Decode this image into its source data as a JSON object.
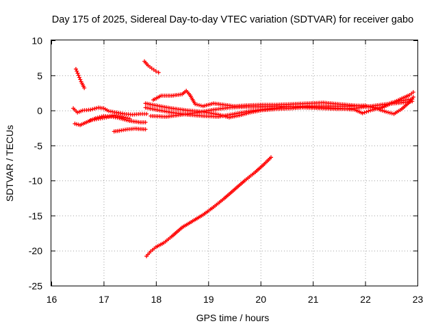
{
  "chart_data": {
    "type": "scatter",
    "title": "Day 175 of 2025, Sidereal Day-to-day VTEC variation (SDTVAR) for receiver gabo",
    "xlabel": "GPS time / hours",
    "ylabel": "SDTVAR / TECUs",
    "xlim": [
      16,
      23
    ],
    "ylim": [
      -25,
      10
    ],
    "xticks": [
      "16",
      "17",
      "18",
      "19",
      "20",
      "21",
      "22",
      "23"
    ],
    "yticks": [
      "10",
      "5",
      "0",
      "-5",
      "-10",
      "-15",
      "-20",
      "-25"
    ],
    "grid": true,
    "marker": "+",
    "series_color": "#ff0000",
    "series": [
      {
        "points": [
          [
            16.47,
            5.9
          ],
          [
            16.52,
            5.0
          ],
          [
            16.57,
            4.1
          ],
          [
            16.63,
            3.2
          ]
        ]
      },
      {
        "points": [
          [
            17.78,
            7.0
          ],
          [
            17.85,
            6.4
          ],
          [
            17.92,
            6.0
          ],
          [
            18.0,
            5.6
          ],
          [
            18.05,
            5.4
          ]
        ]
      },
      {
        "points": [
          [
            16.42,
            0.3
          ],
          [
            16.5,
            -0.3
          ],
          [
            16.6,
            0.0
          ],
          [
            16.75,
            0.1
          ],
          [
            16.9,
            0.4
          ],
          [
            17.0,
            0.3
          ],
          [
            17.1,
            -0.1
          ],
          [
            17.25,
            -0.3
          ],
          [
            17.4,
            -0.5
          ],
          [
            17.55,
            -0.6
          ],
          [
            17.7,
            -0.5
          ],
          [
            17.82,
            -0.5
          ]
        ]
      },
      {
        "points": [
          [
            16.45,
            -1.9
          ],
          [
            16.55,
            -2.1
          ],
          [
            16.7,
            -1.6
          ],
          [
            16.85,
            -1.1
          ],
          [
            17.0,
            -0.8
          ],
          [
            17.15,
            -0.9
          ],
          [
            17.3,
            -1.1
          ],
          [
            17.5,
            -1.5
          ],
          [
            17.7,
            -1.7
          ],
          [
            17.8,
            -1.7
          ]
        ]
      },
      {
        "points": [
          [
            16.75,
            -1.4
          ],
          [
            16.9,
            -1.2
          ],
          [
            17.05,
            -1.0
          ],
          [
            17.2,
            -0.7
          ],
          [
            17.35,
            -0.9
          ],
          [
            17.5,
            -1.2
          ]
        ]
      },
      {
        "points": [
          [
            17.2,
            -3.0
          ],
          [
            17.3,
            -2.9
          ],
          [
            17.45,
            -2.7
          ],
          [
            17.6,
            -2.6
          ],
          [
            17.8,
            -2.7
          ]
        ]
      },
      {
        "points": [
          [
            17.95,
            1.5
          ],
          [
            18.1,
            2.1
          ],
          [
            18.3,
            2.1
          ],
          [
            18.5,
            2.3
          ],
          [
            18.58,
            2.8
          ],
          [
            18.65,
            2.2
          ],
          [
            18.75,
            0.9
          ],
          [
            18.9,
            0.6
          ],
          [
            19.1,
            1.0
          ],
          [
            19.3,
            0.8
          ],
          [
            19.5,
            0.6
          ],
          [
            19.7,
            0.7
          ],
          [
            20.0,
            0.8
          ],
          [
            20.3,
            0.8
          ],
          [
            20.6,
            0.9
          ],
          [
            20.9,
            1.0
          ],
          [
            21.2,
            1.1
          ],
          [
            21.5,
            0.9
          ],
          [
            21.8,
            0.7
          ],
          [
            22.1,
            0.5
          ],
          [
            22.3,
            0.3
          ],
          [
            22.5,
            1.0
          ],
          [
            22.7,
            1.7
          ],
          [
            22.85,
            2.2
          ],
          [
            22.92,
            2.6
          ]
        ]
      },
      {
        "points": [
          [
            17.8,
            1.0
          ],
          [
            18.0,
            0.7
          ],
          [
            18.3,
            0.3
          ],
          [
            18.6,
            0.0
          ],
          [
            18.9,
            -0.2
          ],
          [
            19.2,
            -0.6
          ],
          [
            19.4,
            -1.0
          ],
          [
            19.6,
            -0.7
          ],
          [
            19.8,
            -0.3
          ],
          [
            20.0,
            0.0
          ],
          [
            20.3,
            0.2
          ],
          [
            20.6,
            0.3
          ],
          [
            20.9,
            0.5
          ],
          [
            21.2,
            0.4
          ],
          [
            21.5,
            0.3
          ],
          [
            21.8,
            0.1
          ],
          [
            21.95,
            -0.4
          ],
          [
            22.1,
            0.0
          ],
          [
            22.3,
            0.4
          ],
          [
            22.5,
            1.1
          ],
          [
            22.7,
            1.4
          ],
          [
            22.9,
            1.6
          ]
        ]
      },
      {
        "points": [
          [
            17.8,
            0.4
          ],
          [
            18.0,
            0.1
          ],
          [
            18.3,
            -0.3
          ],
          [
            18.6,
            -0.6
          ],
          [
            18.9,
            -0.8
          ],
          [
            19.2,
            -0.9
          ],
          [
            19.5,
            -0.5
          ],
          [
            19.8,
            -0.1
          ],
          [
            20.1,
            0.2
          ],
          [
            20.5,
            0.5
          ],
          [
            20.9,
            0.6
          ],
          [
            21.3,
            0.6
          ],
          [
            21.7,
            0.6
          ],
          [
            22.0,
            0.7
          ],
          [
            22.2,
            0.3
          ],
          [
            22.4,
            -0.2
          ],
          [
            22.55,
            -0.5
          ],
          [
            22.7,
            0.2
          ],
          [
            22.85,
            1.2
          ],
          [
            22.92,
            1.9
          ]
        ]
      },
      {
        "points": [
          [
            17.9,
            -0.8
          ],
          [
            18.2,
            -0.9
          ],
          [
            18.5,
            -0.6
          ],
          [
            18.8,
            -0.3
          ],
          [
            19.1,
            0.1
          ],
          [
            19.4,
            0.4
          ],
          [
            19.7,
            0.5
          ],
          [
            20.0,
            0.5
          ],
          [
            20.3,
            0.6
          ],
          [
            20.6,
            0.5
          ],
          [
            20.9,
            0.4
          ],
          [
            21.2,
            0.3
          ],
          [
            21.5,
            0.2
          ],
          [
            21.8,
            0.3
          ],
          [
            22.1,
            0.6
          ],
          [
            22.4,
            0.9
          ],
          [
            22.7,
            1.1
          ],
          [
            22.9,
            1.3
          ]
        ]
      },
      {
        "points": [
          [
            17.82,
            -20.8
          ],
          [
            17.9,
            -20.1
          ],
          [
            18.0,
            -19.5
          ],
          [
            18.15,
            -18.9
          ],
          [
            18.3,
            -18.0
          ],
          [
            18.5,
            -16.7
          ],
          [
            18.7,
            -15.8
          ],
          [
            18.9,
            -14.9
          ],
          [
            19.1,
            -13.8
          ],
          [
            19.3,
            -12.6
          ],
          [
            19.5,
            -11.3
          ],
          [
            19.7,
            -10.0
          ],
          [
            19.9,
            -8.8
          ],
          [
            20.05,
            -7.8
          ],
          [
            20.2,
            -6.7
          ]
        ]
      }
    ]
  }
}
